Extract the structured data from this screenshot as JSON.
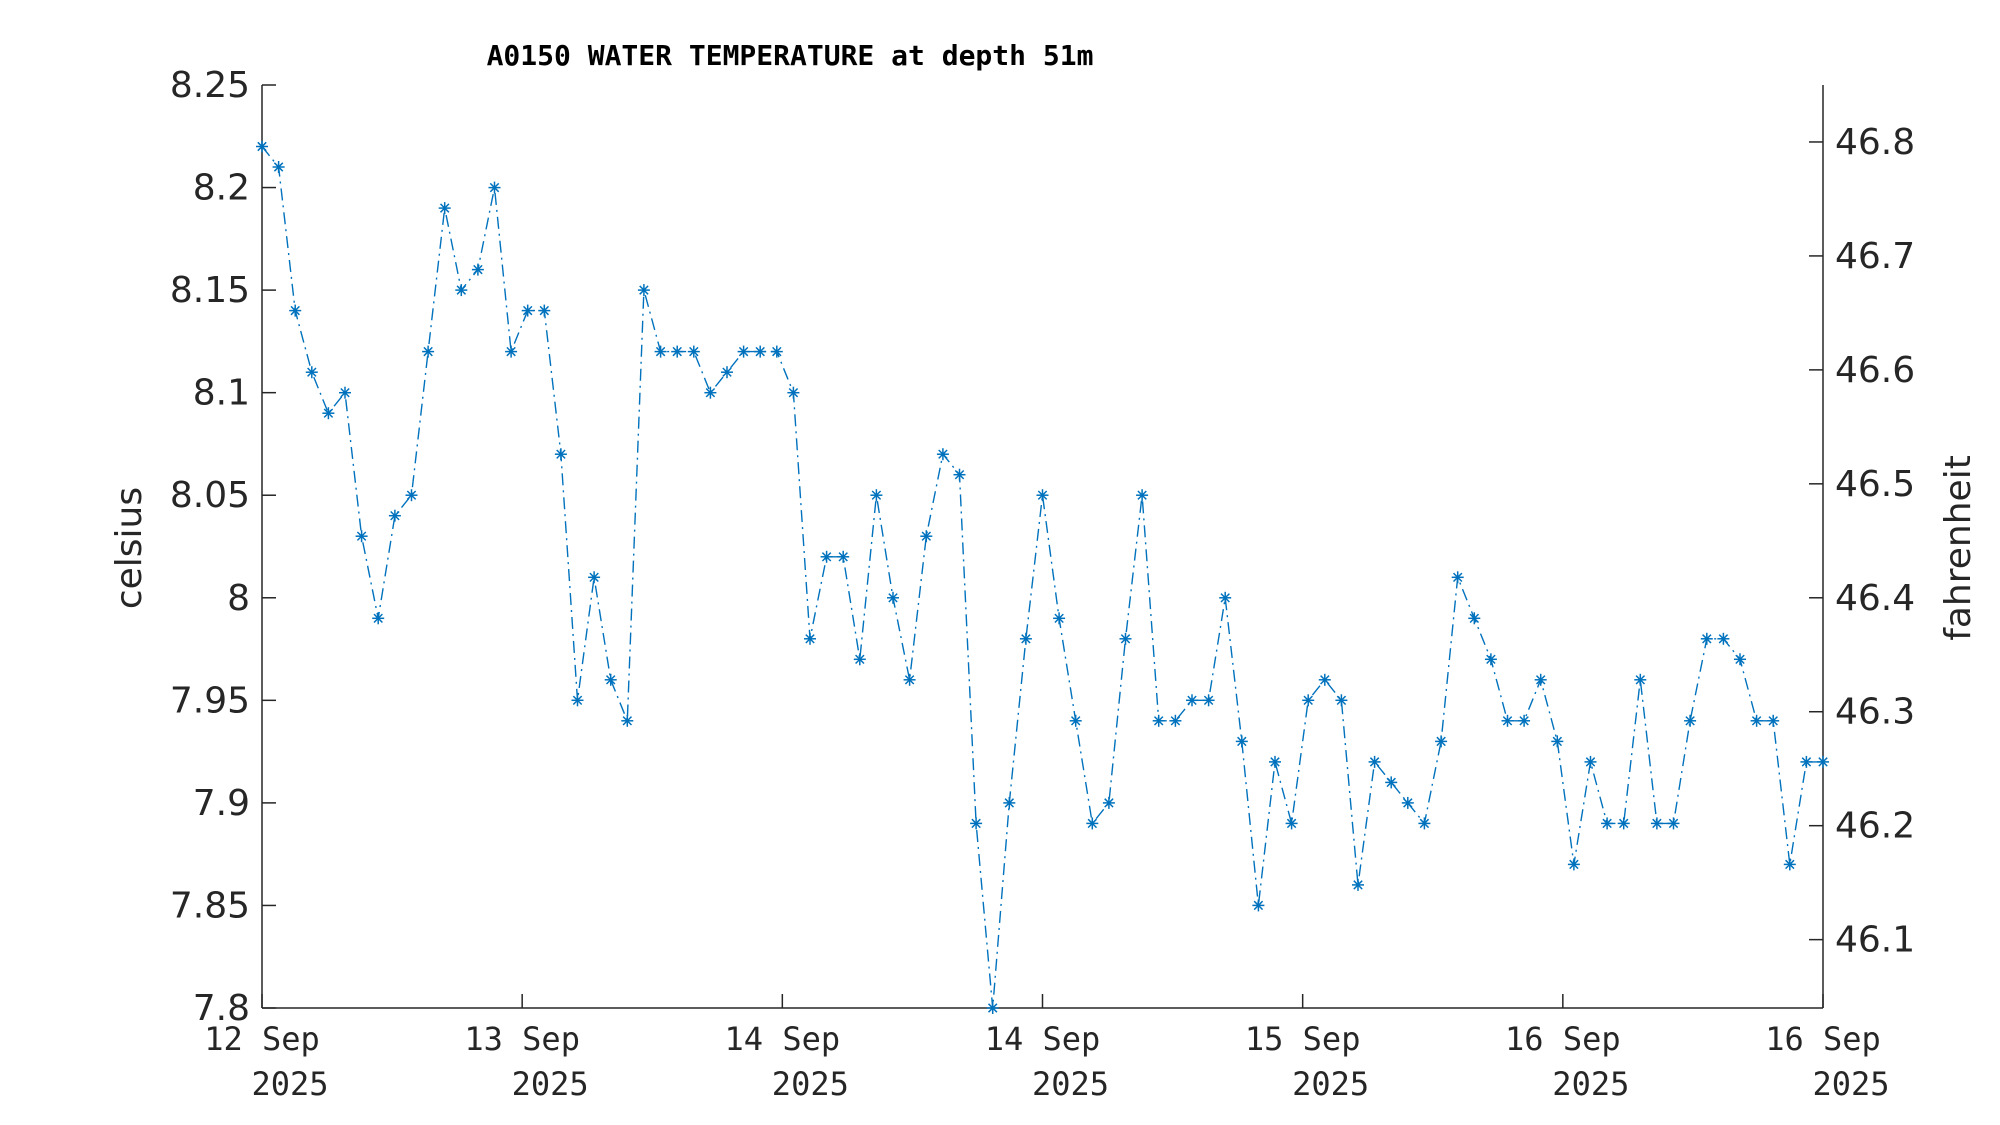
{
  "chart_data": {
    "type": "line",
    "title": "A0150 WATER TEMPERATURE at depth 51m",
    "ylabel": "celsius",
    "ylabel_right": "fahrenheit",
    "ylim": [
      7.8,
      8.25
    ],
    "ylim_right": [
      46.04,
      46.85
    ],
    "yticks": [
      "8.25",
      "8.2",
      "8.15",
      "8.1",
      "8.05",
      "8",
      "7.95",
      "7.9",
      "7.85",
      "7.8"
    ],
    "yticks_right": [
      "46.8",
      "46.7",
      "46.6",
      "46.5",
      "46.4",
      "46.3",
      "46.2",
      "46.1"
    ],
    "xticks": [
      {
        "day": "12 Sep",
        "year": "2025"
      },
      {
        "day": "13 Sep",
        "year": "2025"
      },
      {
        "day": "14 Sep",
        "year": "2025"
      },
      {
        "day": "14 Sep",
        "year": "2025"
      },
      {
        "day": "15 Sep",
        "year": "2025"
      },
      {
        "day": "16 Sep",
        "year": "2025"
      },
      {
        "day": "16 Sep",
        "year": "2025"
      }
    ],
    "grid": false,
    "line_style": "dash-dot",
    "marker": "asterisk",
    "series": [
      {
        "color": "#0072BD",
        "values": [
          8.22,
          8.21,
          8.14,
          8.11,
          8.09,
          8.1,
          8.03,
          7.99,
          8.04,
          8.05,
          8.12,
          8.19,
          8.15,
          8.16,
          8.2,
          8.12,
          8.14,
          8.14,
          8.07,
          7.95,
          8.01,
          7.96,
          7.94,
          8.15,
          8.12,
          8.12,
          8.12,
          8.1,
          8.11,
          8.12,
          8.12,
          8.12,
          8.1,
          7.98,
          8.02,
          8.02,
          7.97,
          8.05,
          8.0,
          7.96,
          8.03,
          8.07,
          8.06,
          7.89,
          7.8,
          7.9,
          7.98,
          8.05,
          7.99,
          7.94,
          7.89,
          7.9,
          7.98,
          8.05,
          7.94,
          7.94,
          7.95,
          7.95,
          8.0,
          7.93,
          7.85,
          7.92,
          7.89,
          7.95,
          7.96,
          7.95,
          7.86,
          7.92,
          7.91,
          7.9,
          7.89,
          7.93,
          8.01,
          7.99,
          7.97,
          7.94,
          7.94,
          7.96,
          7.93,
          7.87,
          7.92,
          7.89,
          7.89,
          7.96,
          7.89,
          7.89,
          7.94,
          7.98,
          7.98,
          7.97,
          7.94,
          7.94,
          7.87,
          7.92,
          7.92
        ]
      }
    ]
  }
}
